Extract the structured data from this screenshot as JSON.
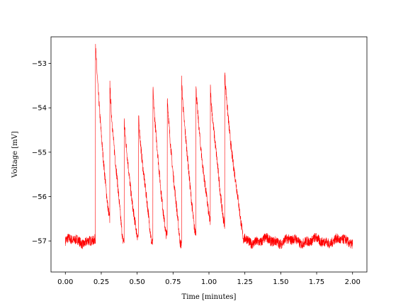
{
  "chart_data": {
    "type": "line",
    "title": "",
    "xlabel": "Time [minutes]",
    "ylabel": "Voltage [mV]",
    "xlim": [
      -0.1,
      2.1
    ],
    "ylim": [
      -57.7,
      -52.4
    ],
    "grid": false,
    "legend": "none",
    "x_ticks": [
      0.0,
      0.25,
      0.5,
      0.75,
      1.0,
      1.25,
      1.5,
      1.75,
      2.0
    ],
    "x_tick_labels": [
      "0.00",
      "0.25",
      "0.50",
      "0.75",
      "1.00",
      "1.25",
      "1.50",
      "1.75",
      "2.00"
    ],
    "y_ticks": [
      -57,
      -56,
      -55,
      -54,
      -53
    ],
    "y_tick_labels": [
      "−57",
      "−56",
      "−55",
      "−54",
      "−53"
    ],
    "series": [
      {
        "color": "#ff0000",
        "baseline_mV": -57.0,
        "spikes": [
          {
            "t": 0.21,
            "peak": -52.6,
            "end": -56.2,
            "decay": 0.085
          },
          {
            "t": 0.31,
            "peak": -53.4,
            "end": -57.0,
            "decay": 0.09
          },
          {
            "t": 0.41,
            "peak": -54.3,
            "end": -56.9,
            "decay": 0.09
          },
          {
            "t": 0.51,
            "peak": -54.2,
            "end": -57.0,
            "decay": 0.09
          },
          {
            "t": 0.61,
            "peak": -53.5,
            "end": -56.9,
            "decay": 0.09
          },
          {
            "t": 0.71,
            "peak": -53.8,
            "end": -57.0,
            "decay": 0.09
          },
          {
            "t": 0.81,
            "peak": -53.3,
            "end": -56.8,
            "decay": 0.09
          },
          {
            "t": 0.91,
            "peak": -53.6,
            "end": -56.4,
            "decay": 0.09
          },
          {
            "t": 1.01,
            "peak": -53.5,
            "end": -56.5,
            "decay": 0.09
          },
          {
            "t": 1.11,
            "peak": -53.2,
            "end": -57.0,
            "decay": 0.13
          }
        ]
      }
    ]
  }
}
